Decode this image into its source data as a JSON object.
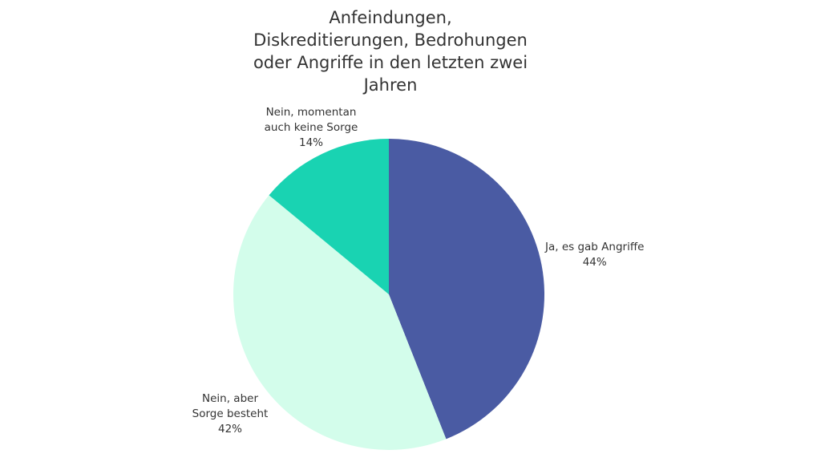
{
  "chart_data": {
    "type": "pie",
    "title_lines": [
      "Anfeindungen,",
      "Diskreditierungen, Bedrohungen",
      "oder Angriffe in den letzten zwei",
      "Jahren"
    ],
    "categories": [
      "Ja, es gab Angriffe",
      "Nein, aber Sorge besteht",
      "Nein, momentan auch keine Sorge"
    ],
    "values": [
      44,
      42,
      14
    ],
    "value_labels": [
      "44%",
      "42%",
      "14%"
    ],
    "label_lines": [
      [
        "Ja, es gab Angriffe"
      ],
      [
        "Nein, aber",
        "Sorge besteht"
      ],
      [
        "Nein, momentan",
        "auch keine Sorge"
      ]
    ],
    "colors": [
      "#4a5ba3",
      "#d3fdeb",
      "#19d3b2"
    ],
    "legend": "none"
  }
}
